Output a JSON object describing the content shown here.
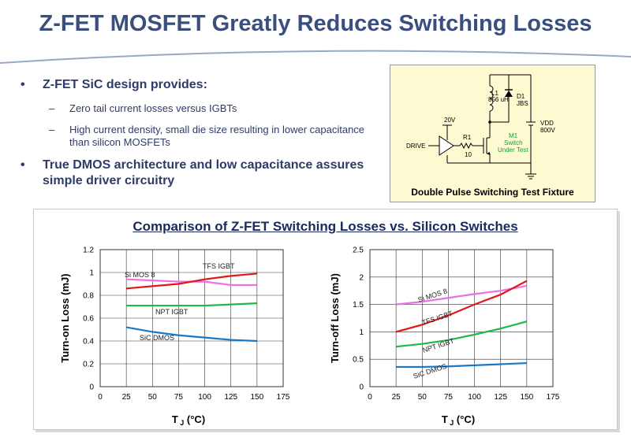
{
  "slide": {
    "title": "Z-FET MOSFET Greatly Reduces Switching Losses",
    "bullet1": "Z-FET SiC design provides:",
    "sub1": "Zero tail current losses versus IGBTs",
    "sub2": "High current density, small die size resulting in lower capacitance than silicon MOSFETs",
    "bullet2": "True DMOS architecture and low capacitance assures simple driver circuitry",
    "bullet_glyph": "•",
    "dash_glyph": "–"
  },
  "fixture": {
    "caption": "Double Pulse Switching Test Fixture",
    "labels": {
      "l1": "L1",
      "l1_value": "856 uH",
      "d1": "D1",
      "d1_type": "JBS",
      "gate_v": "20V",
      "r1": "R1",
      "r1_value": "10",
      "drive": "DRIVE",
      "m1": "M1",
      "m1_desc1": "Switch",
      "m1_desc2": "Under Test",
      "vdd": "VDD",
      "vdd_value": "800V"
    },
    "colors": {
      "background": "#fdf9d0",
      "dut_label": "#1aa03a"
    }
  },
  "chart_title": "Comparison of Z-FET Switching Losses vs. Silicon Switches",
  "chart_data": [
    {
      "type": "line",
      "xlabel": "T",
      "xlabel_sub": "J",
      "xlabel_unit": "(°C)",
      "ylabel": "Turn-on Loss (mJ)",
      "xlim": [
        0,
        175
      ],
      "ylim": [
        0,
        1.2
      ],
      "xticks": [
        0,
        25,
        50,
        75,
        100,
        125,
        150,
        175
      ],
      "yticks": [
        0,
        0.2,
        0.4,
        0.6,
        0.8,
        1,
        1.2
      ],
      "grid": true,
      "series": [
        {
          "name": "Si MOS 8",
          "color": "#ee70e8",
          "x": [
            25,
            50,
            75,
            100,
            125,
            150
          ],
          "values": [
            0.94,
            0.93,
            0.92,
            0.92,
            0.89,
            0.89
          ]
        },
        {
          "name": "TFS IGBT",
          "color": "#e01818",
          "x": [
            25,
            50,
            75,
            100,
            125,
            150
          ],
          "values": [
            0.86,
            0.88,
            0.9,
            0.94,
            0.97,
            0.99
          ]
        },
        {
          "name": "NPT IGBT",
          "color": "#1fb84a",
          "x": [
            25,
            50,
            75,
            100,
            125,
            150
          ],
          "values": [
            0.71,
            0.71,
            0.71,
            0.71,
            0.72,
            0.73
          ]
        },
        {
          "name": "SiC DMOS",
          "color": "#1878c8",
          "x": [
            25,
            50,
            75,
            100,
            125,
            150
          ],
          "values": [
            0.52,
            0.48,
            0.45,
            0.43,
            0.41,
            0.4
          ]
        }
      ]
    },
    {
      "type": "line",
      "xlabel": "T",
      "xlabel_sub": "J",
      "xlabel_unit": "(°C)",
      "ylabel": "Turn-off Loss (mJ)",
      "xlim": [
        0,
        175
      ],
      "ylim": [
        0,
        2.5
      ],
      "xticks": [
        0,
        25,
        50,
        75,
        100,
        125,
        150,
        175
      ],
      "yticks": [
        0,
        0.5,
        1,
        1.5,
        2,
        2.5
      ],
      "grid": true,
      "series": [
        {
          "name": "Si MOS 8",
          "color": "#ee70e8",
          "x": [
            25,
            50,
            75,
            100,
            125,
            150
          ],
          "values": [
            1.5,
            1.55,
            1.62,
            1.69,
            1.75,
            1.84
          ]
        },
        {
          "name": "TFS IGBT",
          "color": "#e01818",
          "x": [
            25,
            50,
            75,
            100,
            125,
            150
          ],
          "values": [
            1.0,
            1.13,
            1.3,
            1.5,
            1.68,
            1.93
          ]
        },
        {
          "name": "NPT IGBT",
          "color": "#1fb84a",
          "x": [
            25,
            50,
            75,
            100,
            125,
            150
          ],
          "values": [
            0.73,
            0.78,
            0.85,
            0.95,
            1.06,
            1.19
          ]
        },
        {
          "name": "SiC DMOS",
          "color": "#1878c8",
          "x": [
            25,
            50,
            75,
            100,
            125,
            150
          ],
          "values": [
            0.36,
            0.36,
            0.37,
            0.39,
            0.41,
            0.43
          ]
        }
      ]
    }
  ]
}
